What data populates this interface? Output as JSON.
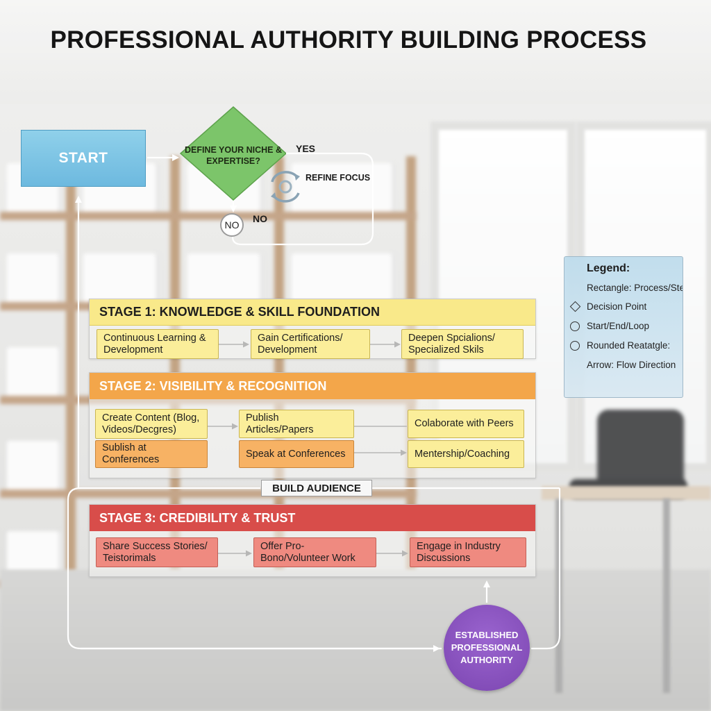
{
  "title": "PROFESSIONAL AUTHORITY BUILDING PROCESS",
  "start": {
    "label": "START"
  },
  "decision": {
    "question": "DEFINE YOUR NICHE & EXPERTISE?",
    "yes_label": "YES",
    "no_label": "NO",
    "no_node": "NO",
    "refine_label": "REFINE FOCUS"
  },
  "stages": [
    {
      "title": "STAGE 1: KNOWLEDGE & SKILL FOUNDATION",
      "color": "#f9e98a",
      "steps": [
        "Continuous Learning & Development",
        "Gain Certifications/ Development",
        "Deepen Spcialions/ Specialized Skils"
      ]
    },
    {
      "title": "STAGE 2: VISIBILITY & RECOGNITION",
      "color": "#f3a64a",
      "steps": [
        "Create Content (Blog, Videos/Decgres)",
        "Publish Articles/Papers",
        "Colaborate with Peers",
        "Sublish at Conferences",
        "Speak at Conferences",
        "Mentership/Coaching"
      ]
    },
    {
      "title": "STAGE 3: CREDIBILITY & TRUST",
      "color": "#d84d4a",
      "steps": [
        "Share Success Stories/ Teistorimals",
        "Offer Pro-Bono/Volunteer Work",
        "Engage in Industry Discussions"
      ]
    }
  ],
  "build_audience": "BUILD AUDIENCE",
  "end": {
    "lines": [
      "ESTABLISHED",
      "PROFESSIONAL",
      "AUTHORITY"
    ],
    "color": "#8a55c0"
  },
  "legend": {
    "title": "Legend:",
    "items": [
      {
        "label": "Rectangle: Process/Step",
        "symbol": "none"
      },
      {
        "label": "Decision Point",
        "symbol": "diamond-icon"
      },
      {
        "label": "Start/End/Loop",
        "symbol": "circle-icon"
      },
      {
        "label": "Rounded Reatatgle:",
        "symbol": "circle-icon"
      },
      {
        "label": "Arrow: Flow Direction",
        "symbol": "none"
      }
    ]
  }
}
